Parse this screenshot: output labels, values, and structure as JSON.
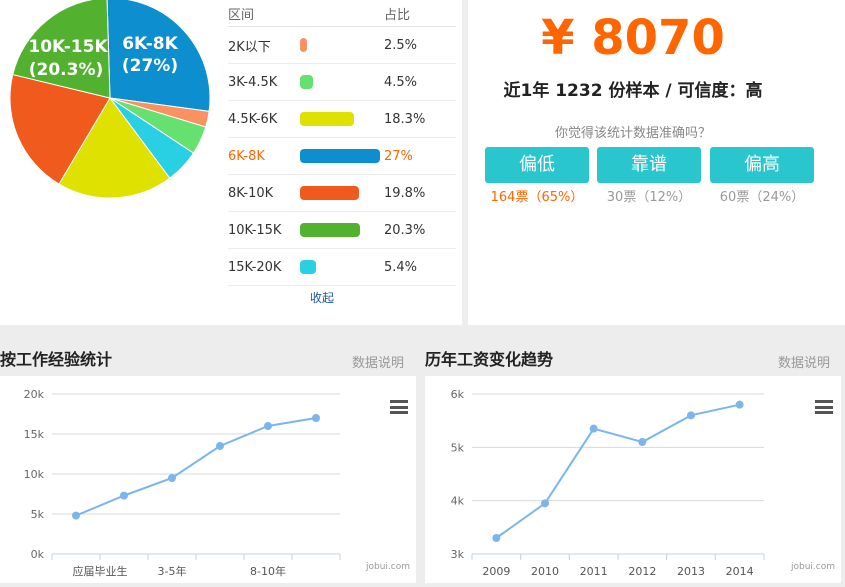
{
  "pie": {
    "label_6k8k_range": "6K-8K",
    "label_6k8k_pct": "(27%)",
    "label_10k15k_range": "10K-15K",
    "label_10k15k_pct": "(20.3%)"
  },
  "distribution": {
    "header_range": "区间",
    "header_pct": "占比",
    "rows": [
      {
        "range": "2K以下",
        "pct": "2.5%",
        "value": 2.5,
        "color": "#fb9061"
      },
      {
        "range": "3K-4.5K",
        "pct": "4.5%",
        "value": 4.5,
        "color": "#66e06f"
      },
      {
        "range": "4.5K-6K",
        "pct": "18.3%",
        "value": 18.3,
        "color": "#dfe200"
      },
      {
        "range": "6K-8K",
        "pct": "27%",
        "value": 27,
        "color": "#0d8ecf",
        "highlight": true
      },
      {
        "range": "8K-10K",
        "pct": "19.8%",
        "value": 19.8,
        "color": "#f05a1c"
      },
      {
        "range": "10K-15K",
        "pct": "20.3%",
        "value": 20.3,
        "color": "#53b130"
      },
      {
        "range": "15K-20K",
        "pct": "5.4%",
        "value": 5.4,
        "color": "#29cfe3"
      }
    ],
    "footer": "收起"
  },
  "salary": {
    "amount": "¥ 8070",
    "summary": "近1年 1232 份样本 / 可信度：高",
    "question": "你觉得该统计数据准确吗？",
    "votes": [
      {
        "label": "偏低",
        "count": "164票（65%）",
        "highlight": true
      },
      {
        "label": "靠谱",
        "count": "30票（12%）"
      },
      {
        "label": "偏高",
        "count": "60票（24%）"
      }
    ]
  },
  "panels": {
    "experience_title": "按工作经验统计",
    "experience_note": "数据说明",
    "trend_title": "历年工资变化趋势",
    "trend_note": "数据说明",
    "credit": "jobui.com"
  },
  "chart_data": [
    {
      "type": "line",
      "title": "按工作经验统计",
      "x_tick_labels": [
        "应届毕业生",
        "3-5年",
        "8-10年"
      ],
      "y_ticks": [
        "0k",
        "5k",
        "10k",
        "15k",
        "20k"
      ],
      "ylim": [
        0,
        20000
      ],
      "values": [
        4800,
        7300,
        9500,
        13500,
        16000,
        17000
      ],
      "color": "#7cb5ec",
      "grid": true
    },
    {
      "type": "line",
      "title": "历年工资变化趋势",
      "categories": [
        "2009",
        "2010",
        "2011",
        "2012",
        "2013",
        "2014"
      ],
      "y_ticks": [
        "3k",
        "4k",
        "5k",
        "6k"
      ],
      "ylim": [
        3000,
        6000
      ],
      "values": [
        3300,
        3950,
        5350,
        5100,
        5600,
        5800
      ],
      "color": "#7cb5ec",
      "grid": true
    }
  ],
  "pie_data": {
    "type": "pie",
    "values": [
      2.5,
      4.5,
      18.3,
      27,
      19.8,
      20.3,
      5.4
    ],
    "labels": [
      "2K以下",
      "3K-4.5K",
      "4.5K-6K",
      "6K-8K",
      "8K-10K",
      "10K-15K",
      "15K-20K"
    ],
    "colors": [
      "#fb9061",
      "#66e06f",
      "#dfe200",
      "#0d8ecf",
      "#f05a1c",
      "#53b130",
      "#29cfe3"
    ]
  }
}
